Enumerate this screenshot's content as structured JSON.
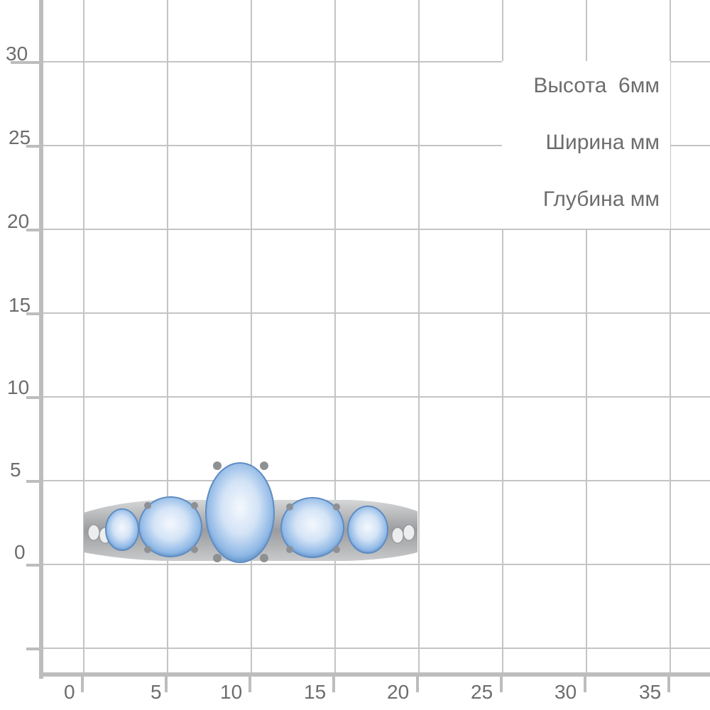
{
  "grid": {
    "line_color": "#c4c4c4",
    "axis_color": "#bdbdbd",
    "label_color": "#6d6d6d",
    "x_ticks": [
      "0",
      "5",
      "10",
      "15",
      "20",
      "25",
      "30",
      "35"
    ],
    "y_ticks": [
      "30",
      "25",
      "20",
      "15",
      "10",
      "5",
      "0"
    ]
  },
  "info": {
    "height": "Высота  6мм",
    "width": "Ширина мм",
    "depth": "Глубина мм"
  },
  "product": {
    "image": "ring-with-blue-topaz-stones",
    "stone_color": "#8fb8e6",
    "metal_color": "#9a9c9f"
  }
}
